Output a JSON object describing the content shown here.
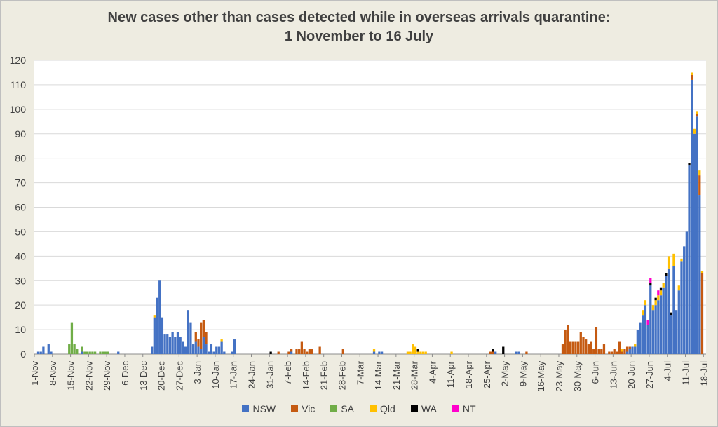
{
  "chart_data": {
    "type": "bar",
    "stacked": true,
    "title_line1": "New cases other than cases detected while in overseas arrivals quarantine:",
    "title_line2": "1 November to 16 July",
    "xlabel": "",
    "ylabel": "",
    "ylim": [
      0,
      120
    ],
    "yticks": [
      0,
      10,
      20,
      30,
      40,
      50,
      60,
      70,
      80,
      90,
      100,
      110,
      120
    ],
    "grid": true,
    "legend_position": "bottom",
    "x_start": "1-Nov",
    "x_end": "18-Jul",
    "num_days": 260,
    "xtick_labels": [
      "1-Nov",
      "8-Nov",
      "15-Nov",
      "22-Nov",
      "29-Nov",
      "6-Dec",
      "13-Dec",
      "20-Dec",
      "27-Dec",
      "3-Jan",
      "10-Jan",
      "17-Jan",
      "24-Jan",
      "31-Jan",
      "7-Feb",
      "14-Feb",
      "21-Feb",
      "28-Feb",
      "7-Mar",
      "14-Mar",
      "21-Mar",
      "28-Mar",
      "4-Apr",
      "11-Apr",
      "18-Apr",
      "25-Apr",
      "2-May",
      "9-May",
      "16-May",
      "23-May",
      "30-May",
      "6-Jun",
      "13-Jun",
      "20-Jun",
      "27-Jun",
      "4-Jul",
      "11-Jul",
      "18-Jul"
    ],
    "series": [
      {
        "name": "NSW",
        "color": "#4472c4",
        "points": [
          [
            "2-Nov",
            1
          ],
          [
            "3-Nov",
            1
          ],
          [
            "4-Nov",
            3
          ],
          [
            "6-Nov",
            4
          ],
          [
            "7-Nov",
            1
          ],
          [
            "19-Nov",
            1
          ],
          [
            "3-Dec",
            1
          ],
          [
            "16-Dec",
            3
          ],
          [
            "17-Dec",
            15
          ],
          [
            "18-Dec",
            23
          ],
          [
            "19-Dec",
            30
          ],
          [
            "20-Dec",
            15
          ],
          [
            "21-Dec",
            8
          ],
          [
            "22-Dec",
            8
          ],
          [
            "23-Dec",
            7
          ],
          [
            "24-Dec",
            9
          ],
          [
            "25-Dec",
            7
          ],
          [
            "26-Dec",
            9
          ],
          [
            "27-Dec",
            7
          ],
          [
            "28-Dec",
            5
          ],
          [
            "29-Dec",
            3
          ],
          [
            "30-Dec",
            18
          ],
          [
            "31-Dec",
            13
          ],
          [
            "1-Jan",
            4
          ],
          [
            "2-Jan",
            5
          ],
          [
            "3-Jan",
            3
          ],
          [
            "4-Jan",
            2
          ],
          [
            "5-Jan",
            7
          ],
          [
            "6-Jan",
            4
          ],
          [
            "7-Jan",
            1
          ],
          [
            "8-Jan",
            4
          ],
          [
            "9-Jan",
            1
          ],
          [
            "10-Jan",
            3
          ],
          [
            "11-Jan",
            3
          ],
          [
            "12-Jan",
            5
          ],
          [
            "13-Jan",
            1
          ],
          [
            "16-Jan",
            1
          ],
          [
            "17-Jan",
            6
          ],
          [
            "8-Feb",
            1
          ],
          [
            "12-Mar",
            1
          ],
          [
            "14-Mar",
            1
          ],
          [
            "15-Mar",
            1
          ],
          [
            "28-Apr",
            1
          ],
          [
            "6-May",
            1
          ],
          [
            "7-May",
            1
          ],
          [
            "18-Jun",
            1
          ],
          [
            "19-Jun",
            2
          ],
          [
            "20-Jun",
            3
          ],
          [
            "21-Jun",
            3
          ],
          [
            "22-Jun",
            10
          ],
          [
            "23-Jun",
            13
          ],
          [
            "24-Jun",
            16
          ],
          [
            "25-Jun",
            20
          ],
          [
            "26-Jun",
            12
          ],
          [
            "27-Jun",
            28
          ],
          [
            "28-Jun",
            18
          ],
          [
            "29-Jun",
            20
          ],
          [
            "30-Jun",
            22
          ],
          [
            "1-Jul",
            24
          ],
          [
            "2-Jul",
            27
          ],
          [
            "3-Jul",
            32
          ],
          [
            "4-Jul",
            35
          ],
          [
            "5-Jul",
            16
          ],
          [
            "6-Jul",
            36
          ],
          [
            "7-Jul",
            18
          ],
          [
            "8-Jul",
            26
          ],
          [
            "9-Jul",
            38
          ],
          [
            "10-Jul",
            44
          ],
          [
            "11-Jul",
            50
          ],
          [
            "12-Jul",
            77
          ],
          [
            "13-Jul",
            112
          ],
          [
            "14-Jul",
            90
          ],
          [
            "15-Jul",
            97
          ],
          [
            "16-Jul",
            65
          ]
        ]
      },
      {
        "name": "Vic",
        "color": "#c55a11",
        "points": [
          [
            "2-Jan",
            4
          ],
          [
            "3-Jan",
            3
          ],
          [
            "4-Jan",
            11
          ],
          [
            "5-Jan",
            7
          ],
          [
            "6-Jan",
            5
          ],
          [
            "3-Feb",
            1
          ],
          [
            "7-Feb",
            1
          ],
          [
            "8-Feb",
            1
          ],
          [
            "10-Feb",
            2
          ],
          [
            "11-Feb",
            2
          ],
          [
            "12-Feb",
            5
          ],
          [
            "13-Feb",
            2
          ],
          [
            "14-Feb",
            1
          ],
          [
            "15-Feb",
            2
          ],
          [
            "16-Feb",
            2
          ],
          [
            "19-Feb",
            3
          ],
          [
            "28-Feb",
            2
          ],
          [
            "26-Apr",
            1
          ],
          [
            "27-Apr",
            1
          ],
          [
            "10-May",
            1
          ],
          [
            "24-May",
            4
          ],
          [
            "25-May",
            10
          ],
          [
            "26-May",
            12
          ],
          [
            "27-May",
            5
          ],
          [
            "28-May",
            5
          ],
          [
            "29-May",
            5
          ],
          [
            "30-May",
            5
          ],
          [
            "31-May",
            9
          ],
          [
            "1-Jun",
            7
          ],
          [
            "2-Jun",
            6
          ],
          [
            "3-Jun",
            4
          ],
          [
            "4-Jun",
            5
          ],
          [
            "5-Jun",
            2
          ],
          [
            "6-Jun",
            11
          ],
          [
            "7-Jun",
            2
          ],
          [
            "8-Jun",
            2
          ],
          [
            "9-Jun",
            4
          ],
          [
            "11-Jun",
            1
          ],
          [
            "12-Jun",
            1
          ],
          [
            "13-Jun",
            2
          ],
          [
            "14-Jun",
            1
          ],
          [
            "15-Jun",
            5
          ],
          [
            "16-Jun",
            1
          ],
          [
            "17-Jun",
            2
          ],
          [
            "18-Jun",
            2
          ],
          [
            "19-Jun",
            1
          ],
          [
            "13-Jul",
            2
          ],
          [
            "15-Jul",
            1
          ],
          [
            "16-Jul",
            8
          ],
          [
            "17-Jul",
            33
          ]
        ]
      },
      {
        "name": "SA",
        "color": "#70ad47",
        "points": [
          [
            "14-Nov",
            4
          ],
          [
            "15-Nov",
            13
          ],
          [
            "16-Nov",
            4
          ],
          [
            "17-Nov",
            2
          ],
          [
            "19-Nov",
            2
          ],
          [
            "20-Nov",
            1
          ],
          [
            "21-Nov",
            1
          ],
          [
            "22-Nov",
            1
          ],
          [
            "23-Nov",
            1
          ],
          [
            "24-Nov",
            1
          ],
          [
            "26-Nov",
            1
          ],
          [
            "27-Nov",
            1
          ],
          [
            "28-Nov",
            1
          ],
          [
            "29-Nov",
            1
          ]
        ]
      },
      {
        "name": "Qld",
        "color": "#ffc000",
        "points": [
          [
            "17-Dec",
            1
          ],
          [
            "12-Jan",
            1
          ],
          [
            "12-Mar",
            1
          ],
          [
            "25-Mar",
            1
          ],
          [
            "26-Mar",
            1
          ],
          [
            "27-Mar",
            4
          ],
          [
            "28-Mar",
            3
          ],
          [
            "29-Mar",
            1
          ],
          [
            "30-Mar",
            1
          ],
          [
            "31-Mar",
            1
          ],
          [
            "1-Apr",
            1
          ],
          [
            "11-Apr",
            1
          ],
          [
            "16-Jun",
            1
          ],
          [
            "21-Jun",
            1
          ],
          [
            "24-Jun",
            2
          ],
          [
            "25-Jun",
            2
          ],
          [
            "28-Jun",
            2
          ],
          [
            "29-Jun",
            2
          ],
          [
            "30-Jun",
            2
          ],
          [
            "1-Jul",
            2
          ],
          [
            "2-Jul",
            2
          ],
          [
            "4-Jul",
            5
          ],
          [
            "6-Jul",
            5
          ],
          [
            "8-Jul",
            2
          ],
          [
            "9-Jul",
            1
          ],
          [
            "13-Jul",
            1
          ],
          [
            "14-Jul",
            2
          ],
          [
            "15-Jul",
            1
          ],
          [
            "16-Jul",
            2
          ],
          [
            "17-Jul",
            1
          ]
        ]
      },
      {
        "name": "WA",
        "color": "#000000",
        "points": [
          [
            "31-Jan",
            1
          ],
          [
            "29-Mar",
            1
          ],
          [
            "27-Apr",
            1
          ],
          [
            "1-May",
            3
          ],
          [
            "27-Jun",
            1
          ],
          [
            "29-Jun",
            1
          ],
          [
            "1-Jul",
            1
          ],
          [
            "3-Jul",
            1
          ],
          [
            "5-Jul",
            1
          ],
          [
            "12-Jul",
            1
          ]
        ]
      },
      {
        "name": "NT",
        "color": "#ff00cc",
        "points": [
          [
            "26-Jun",
            2
          ],
          [
            "27-Jun",
            2
          ],
          [
            "30-Jun",
            2
          ]
        ]
      }
    ]
  }
}
